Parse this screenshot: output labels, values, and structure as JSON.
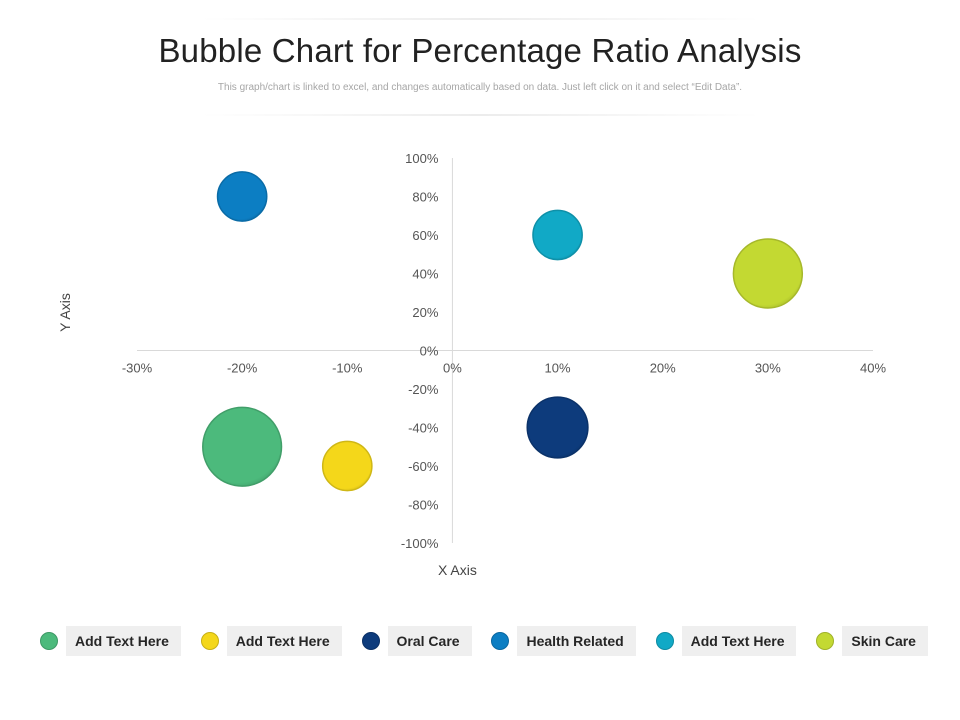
{
  "header": {
    "title": "Bubble Chart for Percentage Ratio Analysis",
    "subtitle": "This graph/chart is linked to excel, and changes automatically based on data. Just left click on it and select “Edit Data”."
  },
  "chart_data": {
    "type": "scatter",
    "title": "Bubble Chart for Percentage Ratio Analysis",
    "xlabel": "X Axis",
    "ylabel": "Y Axis",
    "xlim": [
      -30,
      40
    ],
    "ylim": [
      -100,
      100
    ],
    "x_ticks": [
      -30,
      -20,
      -10,
      0,
      10,
      20,
      30,
      40
    ],
    "y_ticks": [
      100,
      80,
      60,
      40,
      20,
      0,
      -20,
      -40,
      -60,
      -80,
      -100
    ],
    "tick_suffix": "%",
    "grid": false,
    "legend_position": "bottom",
    "series": [
      {
        "name": "Add Text Here",
        "x": -20,
        "y": -50,
        "size": 48,
        "color": "#4cba7c"
      },
      {
        "name": "Add Text Here",
        "x": -10,
        "y": -60,
        "size": 30,
        "color": "#f4d71a"
      },
      {
        "name": "Oral Care",
        "x": 10,
        "y": -40,
        "size": 37,
        "color": "#0d3b7c"
      },
      {
        "name": "Health Related",
        "x": -20,
        "y": 80,
        "size": 30,
        "color": "#0c7ec3"
      },
      {
        "name": "Add Text Here",
        "x": 10,
        "y": 60,
        "size": 30,
        "color": "#11a9c6"
      },
      {
        "name": "Skin Care",
        "x": 30,
        "y": 40,
        "size": 42,
        "color": "#c3d932"
      }
    ]
  }
}
